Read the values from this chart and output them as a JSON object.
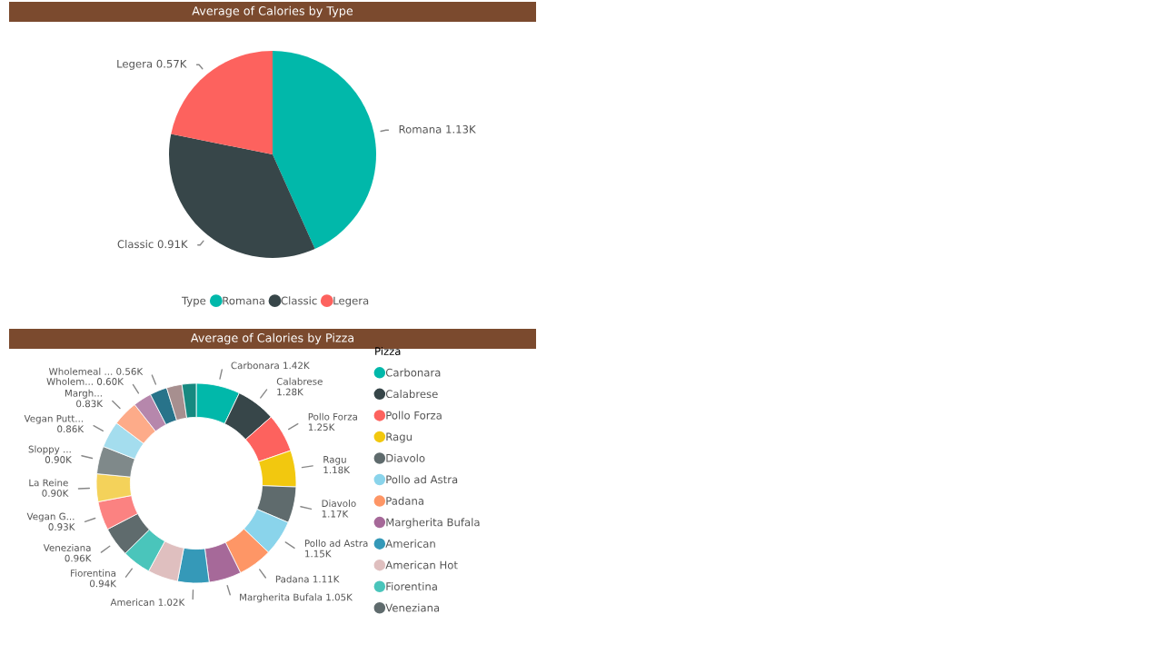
{
  "chart_data": [
    {
      "type": "pie",
      "title": "Average of Calories by Type",
      "legend_title": "Type",
      "legend": "bottom",
      "categories": [
        "Romana",
        "Classic",
        "Legera"
      ],
      "values": [
        1.13,
        0.91,
        0.57
      ],
      "value_labels": [
        "1.13K",
        "0.91K",
        "0.57K"
      ],
      "colors": [
        "#01b8aa",
        "#374649",
        "#fd625e"
      ]
    },
    {
      "type": "donut",
      "title": "Average of Calories by Pizza",
      "legend_title": "Pizza",
      "legend": "right",
      "categories": [
        "Carbonara",
        "Calabrese",
        "Pollo Forza",
        "Ragu",
        "Diavolo",
        "Pollo ad Astra",
        "Padana",
        "Margherita Bufala",
        "American",
        "American Hot",
        "Fiorentina",
        "Veneziana",
        "Vegan G...",
        "La Reine",
        "Sloppy ...",
        "Vegan Putt...",
        "Margh...",
        "Wholem...",
        "Wholemeal ...",
        null,
        null
      ],
      "values": [
        1.42,
        1.28,
        1.25,
        1.18,
        1.17,
        1.15,
        1.11,
        1.05,
        1.02,
        0.98,
        0.94,
        0.96,
        0.93,
        0.9,
        0.9,
        0.86,
        0.83,
        0.6,
        0.56,
        0.5,
        0.46
      ],
      "value_labels": [
        "1.42K",
        "1.28K",
        "1.25K",
        "1.18K",
        "1.17K",
        "1.15K",
        "1.11K",
        "1.05K",
        "1.02K",
        null,
        "0.94K",
        "0.96K",
        "0.93K",
        "0.90K",
        "0.90K",
        "0.86K",
        "0.83K",
        "0.60K",
        "0.56K",
        null,
        null
      ],
      "colors": [
        "#01b8aa",
        "#374649",
        "#fd625e",
        "#f2c80f",
        "#5f6b6d",
        "#8ad4eb",
        "#fe9666",
        "#a66999",
        "#3599b8",
        "#dfbfbf",
        "#4ac5bb",
        "#5f6b6d",
        "#fb8281",
        "#f4d25a",
        "#7f898a",
        "#a4ddee",
        "#fdab89",
        "#b687ac",
        "#28738a",
        "#a78f8f",
        "#168980"
      ]
    }
  ]
}
